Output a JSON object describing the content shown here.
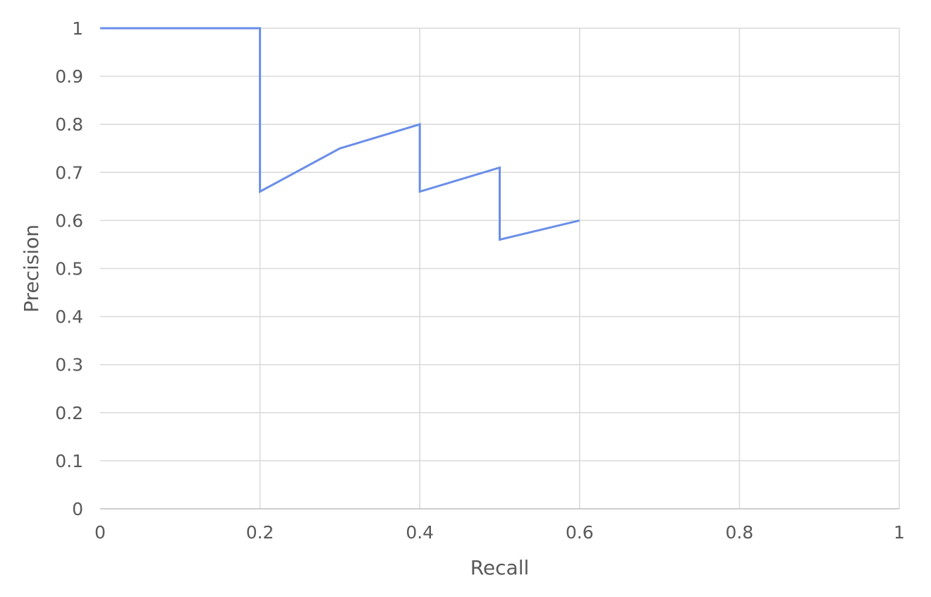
{
  "chart_data": {
    "type": "line",
    "title": "",
    "xlabel": "Recall",
    "ylabel": "Precision",
    "xlim": [
      0,
      1
    ],
    "ylim": [
      0,
      1
    ],
    "x_ticks": [
      "0",
      "0.2",
      "0.4",
      "0.6",
      "0.8",
      "1"
    ],
    "x_tick_values": [
      0,
      0.2,
      0.4,
      0.6,
      0.8,
      1
    ],
    "y_ticks": [
      "0",
      "0.1",
      "0.2",
      "0.3",
      "0.4",
      "0.5",
      "0.6",
      "0.7",
      "0.8",
      "0.9",
      "1"
    ],
    "y_tick_values": [
      0,
      0.1,
      0.2,
      0.3,
      0.4,
      0.5,
      0.6,
      0.7,
      0.8,
      0.9,
      1
    ],
    "grid": true,
    "legend": "none",
    "series": [
      {
        "color": "#6a8ee8",
        "x": [
          0,
          0.2,
          0.2,
          0.3,
          0.4,
          0.4,
          0.5,
          0.5,
          0.6
        ],
        "y": [
          1,
          1,
          0.66,
          0.75,
          0.8,
          0.66,
          0.71,
          0.56,
          0.6
        ]
      }
    ]
  }
}
